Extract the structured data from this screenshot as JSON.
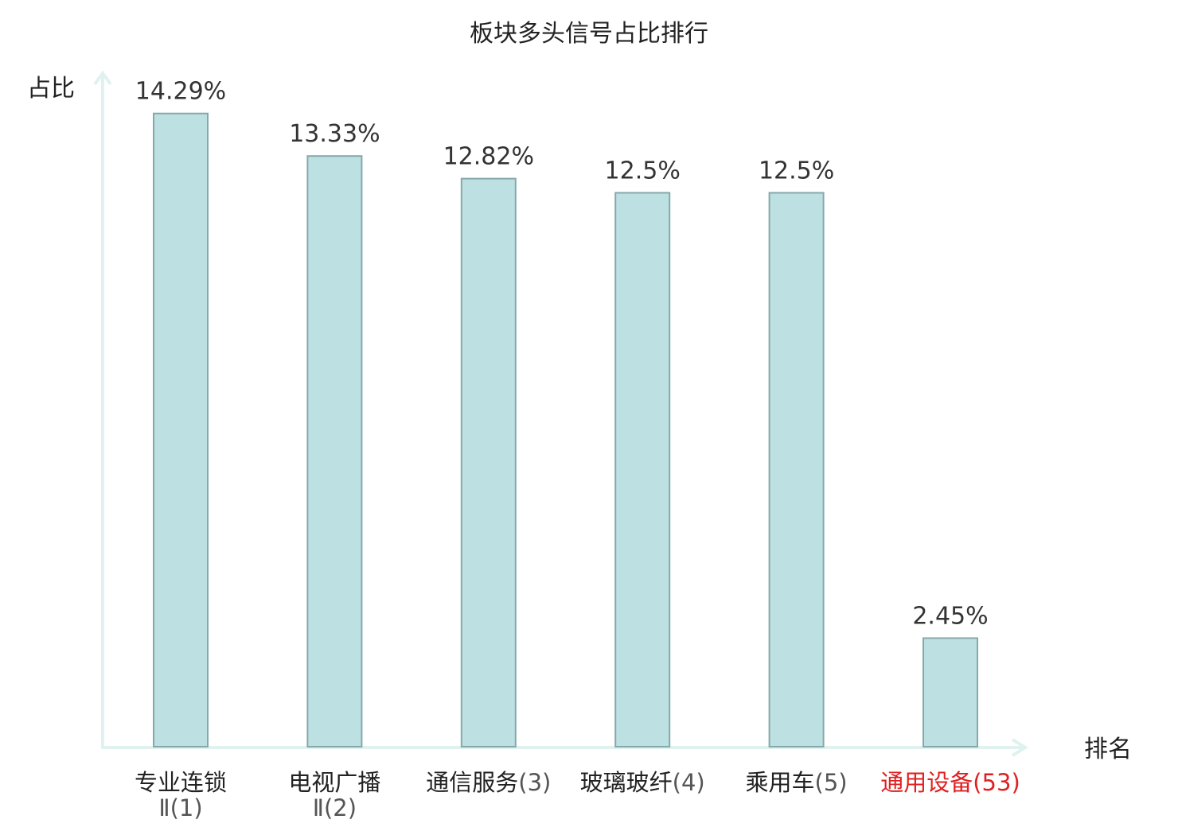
{
  "chart_data": {
    "type": "bar",
    "title": "板块多头信号占比排行",
    "ylabel": "占比",
    "xlabel": "排名",
    "value_unit": "%",
    "ylim": [
      0,
      15.2
    ],
    "categories": [
      {
        "name": "专业连锁",
        "rank": "Ⅱ(1)",
        "highlight": false
      },
      {
        "name": "电视广播",
        "rank": "Ⅱ(2)",
        "highlight": false
      },
      {
        "name": "通信服务",
        "rank": "(3)",
        "highlight": false
      },
      {
        "name": "玻璃玻纤",
        "rank": "(4)",
        "highlight": false
      },
      {
        "name": "乘用车",
        "rank": "(5)",
        "highlight": false
      },
      {
        "name": "通用设备",
        "rank": "(53)",
        "highlight": true
      }
    ],
    "values": [
      14.29,
      13.33,
      12.82,
      12.5,
      12.5,
      2.45
    ],
    "value_labels": [
      "14.29%",
      "13.33%",
      "12.82%",
      "12.5%",
      "12.5%",
      "2.45%"
    ],
    "colors": {
      "bar_fill": "#bde0e3",
      "bar_stroke": "#86a8aa",
      "axis": "#dff2ef",
      "highlight": "#e02020"
    },
    "grid": false,
    "legend": "none"
  }
}
